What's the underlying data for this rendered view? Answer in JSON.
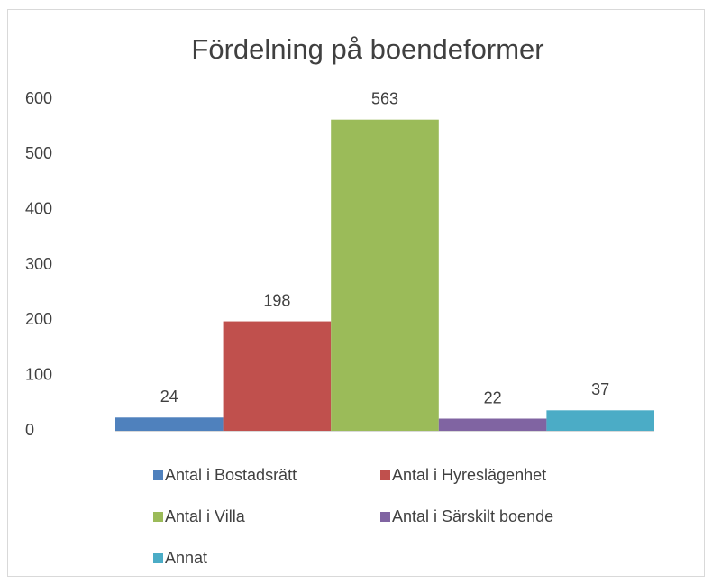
{
  "chart_data": {
    "type": "bar",
    "title": "Fördelning på boendeformer",
    "categories": [
      null
    ],
    "series": [
      {
        "name": "Antal i Bostadsrätt",
        "color": "#4f81bd",
        "values": [
          24
        ]
      },
      {
        "name": "Antal i Hyreslägenhet",
        "color": "#c0504d",
        "values": [
          198
        ]
      },
      {
        "name": "Antal i Villa",
        "color": "#9bbb59",
        "values": [
          563
        ]
      },
      {
        "name": "Antal i Särskilt boende",
        "color": "#8064a2",
        "values": [
          22
        ]
      },
      {
        "name": "Annat",
        "color": "#4bacc6",
        "values": [
          37
        ]
      }
    ],
    "ylim": [
      0,
      600
    ],
    "yticks": [
      0,
      100,
      200,
      300,
      400,
      500,
      600
    ],
    "grid": false
  }
}
